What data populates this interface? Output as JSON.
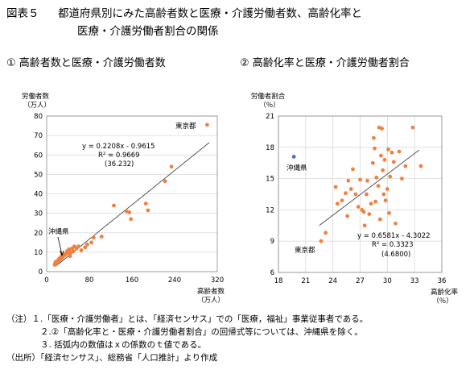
{
  "figure": {
    "label": "図表５",
    "title_line1": "都道府県別にみた高齢者数と医療・介護労働者数、高齢化率と",
    "title_line2": "医療・介護労働者割合の関係"
  },
  "colors": {
    "point": "#f08040",
    "outlier": "#4472c4",
    "line": "#444444",
    "grid": "#d9d9d9"
  },
  "chart_data": [
    {
      "type": "scatter",
      "title": "①  高齢者数と医療・介護労働者数",
      "ylabel": "労働者数",
      "ylabel_unit": "（万人）",
      "xlabel": "高齢者数",
      "xlabel_unit": "（万人）",
      "xlim": [
        0,
        320
      ],
      "ylim": [
        0,
        80
      ],
      "xticks": [
        "0",
        "80",
        "160",
        "240",
        "320"
      ],
      "yticks": [
        "0",
        "10",
        "20",
        "30",
        "40",
        "50",
        "60",
        "70",
        "80"
      ],
      "grid": "horizontal",
      "trendline": {
        "slope": 0.2208,
        "intercept": -0.9615
      },
      "annotations": {
        "equation": "y = 0.2208x - 0.9615",
        "r2": "R² = 0.9669",
        "paren": "(36.232)",
        "label_a": "東京都",
        "label_b": "沖縄県"
      },
      "points": [
        [
          301,
          75.5
        ],
        [
          234,
          54
        ],
        [
          222,
          46.5
        ],
        [
          186,
          35
        ],
        [
          190,
          31.5
        ],
        [
          150,
          31
        ],
        [
          155,
          30.5
        ],
        [
          158,
          27
        ],
        [
          126,
          34
        ],
        [
          103,
          18
        ],
        [
          88,
          17.5
        ],
        [
          84,
          15
        ],
        [
          76,
          14
        ],
        [
          72,
          12.5
        ],
        [
          60,
          13
        ],
        [
          56,
          12
        ],
        [
          52,
          13
        ],
        [
          48,
          12
        ],
        [
          45,
          10
        ],
        [
          42,
          11.5
        ],
        [
          40,
          9.5
        ],
        [
          38,
          10.5
        ],
        [
          36,
          9
        ],
        [
          34,
          8.5
        ],
        [
          32,
          9
        ],
        [
          31,
          8
        ],
        [
          30,
          7.5
        ],
        [
          29,
          8.5
        ],
        [
          28,
          7
        ],
        [
          27,
          7.5
        ],
        [
          26,
          6.5
        ],
        [
          25,
          7
        ],
        [
          24,
          6
        ],
        [
          23,
          6.5
        ],
        [
          22,
          5.5
        ],
        [
          21,
          5
        ],
        [
          20,
          5.5
        ],
        [
          19,
          4.5
        ],
        [
          18,
          4
        ],
        [
          17,
          5
        ],
        [
          16,
          4.5
        ],
        [
          15,
          3.5
        ],
        [
          44,
          8
        ],
        [
          50,
          10.5
        ],
        [
          65,
          11
        ]
      ]
    },
    {
      "type": "scatter",
      "title": "②  高齢化率と医療・介護労働者割合",
      "ylabel": "労働者割合",
      "ylabel_unit": "（％）",
      "xlabel": "高齢化率",
      "xlabel_unit": "（％）",
      "xlim": [
        18,
        36
      ],
      "ylim": [
        6,
        21
      ],
      "xticks": [
        "18",
        "21",
        "24",
        "27",
        "30",
        "33",
        "36"
      ],
      "yticks": [
        "6",
        "9",
        "12",
        "15",
        "18",
        "21"
      ],
      "grid": "both",
      "trendline": {
        "slope": 0.6581,
        "intercept": -4.3022,
        "x_range": [
          22.5,
          33.5
        ]
      },
      "annotations": {
        "equation": "y = 0.6581x - 4.3022",
        "r2": "R² = 0.3323",
        "paren": "(4.6800)",
        "label_a": "東京都",
        "label_b": "沖縄県"
      },
      "outlier": [
        19.7,
        17.1
      ],
      "points": [
        [
          22.7,
          9.0
        ],
        [
          23.2,
          9.8
        ],
        [
          24.3,
          14.2
        ],
        [
          24.5,
          12.6
        ],
        [
          25.0,
          12.9
        ],
        [
          25.4,
          13.6
        ],
        [
          25.7,
          14.8
        ],
        [
          25.6,
          11.4
        ],
        [
          26.0,
          14.0
        ],
        [
          26.2,
          15.9
        ],
        [
          26.5,
          13.5
        ],
        [
          26.8,
          12.3
        ],
        [
          27.0,
          14.9
        ],
        [
          27.2,
          12.0
        ],
        [
          27.4,
          11.8
        ],
        [
          27.5,
          10.5
        ],
        [
          27.7,
          13.5
        ],
        [
          27.8,
          14.8
        ],
        [
          28.0,
          11.6
        ],
        [
          28.2,
          12.6
        ],
        [
          28.4,
          16.5
        ],
        [
          28.5,
          18.9
        ],
        [
          28.6,
          17.9
        ],
        [
          28.7,
          12.8
        ],
        [
          28.8,
          15.1
        ],
        [
          29.0,
          14.3
        ],
        [
          29.1,
          19.9
        ],
        [
          29.3,
          17.2
        ],
        [
          29.4,
          19.8
        ],
        [
          29.5,
          15.8
        ],
        [
          29.6,
          13.5
        ],
        [
          29.7,
          16.8
        ],
        [
          29.8,
          12.9
        ],
        [
          30.0,
          14.0
        ],
        [
          30.1,
          17.8
        ],
        [
          30.2,
          11.7
        ],
        [
          30.3,
          15.2
        ],
        [
          30.5,
          17.5
        ],
        [
          30.7,
          16.6
        ],
        [
          30.9,
          10.7
        ],
        [
          31.3,
          17.6
        ],
        [
          32.0,
          16.2
        ],
        [
          32.8,
          19.9
        ],
        [
          33.7,
          16.2
        ],
        [
          31.6,
          15.0
        ],
        [
          29.2,
          11.1
        ]
      ]
    }
  ],
  "notes": {
    "line1": "（注）１.「医療・介護労働者」とは、「経済センサス」での「医療，福祉」事業従事者である。",
    "line2": "２.②「高齢化率と・医療・介護労働者割合」の回帰式等については、沖縄県を除く。",
    "line3": "３. 括弧内の数値はｘの係数のｔ値である。",
    "source": "（出所）「経済センサス」、総務省「人口推計」より作成"
  }
}
